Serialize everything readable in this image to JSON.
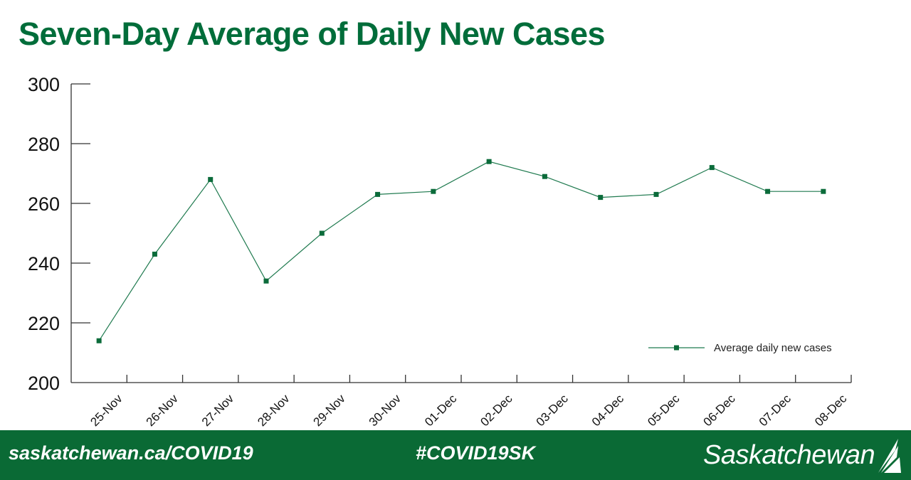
{
  "title": "Seven-Day Average of Daily New Cases",
  "footer": {
    "website": "saskatchewan.ca/COVID19",
    "hashtag": "#COVID19SK",
    "logo": "Saskatchewan"
  },
  "colors": {
    "accent": "#006d3a",
    "footer_bg": "#0a6a35",
    "line": "#1f7a4f"
  },
  "chart_data": {
    "type": "line",
    "title": "Seven-Day Average of Daily New Cases",
    "xlabel": "",
    "ylabel": "",
    "ylim": [
      200,
      300
    ],
    "yticks": [
      200,
      220,
      240,
      260,
      280,
      300
    ],
    "grid": false,
    "legend_position": "bottom-right",
    "categories": [
      "25-Nov",
      "26-Nov",
      "27-Nov",
      "28-Nov",
      "29-Nov",
      "30-Nov",
      "01-Dec",
      "02-Dec",
      "03-Dec",
      "04-Dec",
      "05-Dec",
      "06-Dec",
      "07-Dec",
      "08-Dec"
    ],
    "series": [
      {
        "name": "Average daily new cases",
        "values": [
          214,
          243,
          268,
          234,
          250,
          263,
          264,
          274,
          269,
          262,
          263,
          272,
          264,
          264
        ]
      }
    ]
  }
}
